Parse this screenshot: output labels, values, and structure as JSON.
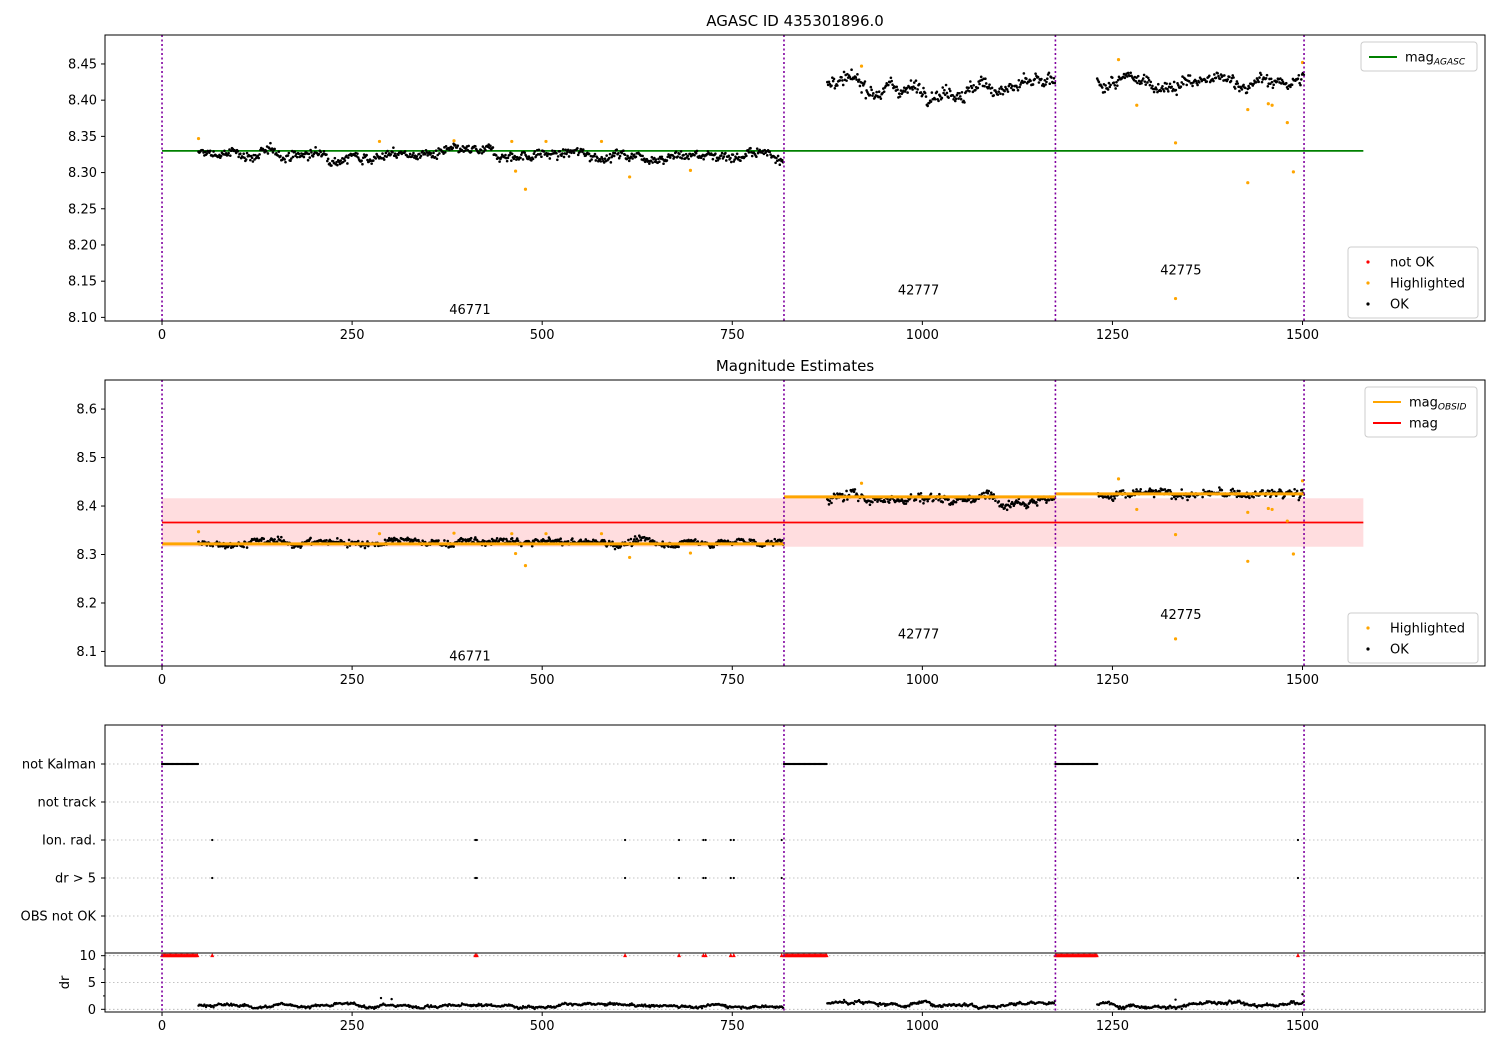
{
  "chart_data": [
    {
      "type": "scatter",
      "title": "AGASC ID 435301896.0",
      "xlim": [
        -75,
        1740
      ],
      "ylim": [
        8.095,
        8.49
      ],
      "xticks": [
        0,
        250,
        500,
        750,
        1000,
        1250,
        1500
      ],
      "yticks": [
        8.1,
        8.15,
        8.2,
        8.25,
        8.3,
        8.35,
        8.4,
        8.45
      ],
      "ytick_labels": [
        "8.10",
        "8.15",
        "8.20",
        "8.25",
        "8.30",
        "8.35",
        "8.40",
        "8.45"
      ],
      "grid": false,
      "obs_boundaries": [
        0,
        818,
        1175,
        1502
      ],
      "obs_labels": [
        {
          "text": "46771",
          "x": 405,
          "y": 8.11
        },
        {
          "text": "42777",
          "x": 995,
          "y": 8.137
        },
        {
          "text": "42775",
          "x": 1340,
          "y": 8.165
        }
      ],
      "mag_agasc": {
        "value": 8.33,
        "x_range": [
          0,
          1580
        ]
      },
      "ok_segments": [
        {
          "x_start": 48,
          "x_end": 818,
          "mean": 8.325,
          "spread": 0.007
        },
        {
          "x_start": 875,
          "x_end": 1175,
          "mean": 8.418,
          "spread": 0.01
        },
        {
          "x_start": 1230,
          "x_end": 1502,
          "mean": 8.424,
          "spread": 0.009
        }
      ],
      "highlighted": [
        [
          48,
          8.347
        ],
        [
          286,
          8.343
        ],
        [
          384,
          8.344
        ],
        [
          460,
          8.343
        ],
        [
          465,
          8.302
        ],
        [
          478,
          8.277
        ],
        [
          505,
          8.343
        ],
        [
          578,
          8.343
        ],
        [
          615,
          8.294
        ],
        [
          695,
          8.303
        ],
        [
          920,
          8.447
        ],
        [
          1258,
          8.456
        ],
        [
          1282,
          8.393
        ],
        [
          1333,
          8.341
        ],
        [
          1333,
          8.126
        ],
        [
          1428,
          8.387
        ],
        [
          1428,
          8.286
        ],
        [
          1455,
          8.395
        ],
        [
          1460,
          8.393
        ],
        [
          1480,
          8.369
        ],
        [
          1488,
          8.301
        ],
        [
          1500,
          8.452
        ]
      ],
      "legend_top": [
        {
          "label": "mag",
          "sub": "AGASC",
          "color": "#008000"
        }
      ],
      "legend_bottom": [
        {
          "label": "not OK",
          "color": "#ff0000"
        },
        {
          "label": "Highlighted",
          "color": "#ffa500"
        },
        {
          "label": "OK",
          "color": "#000000"
        }
      ]
    },
    {
      "type": "scatter",
      "title": "Magnitude Estimates",
      "xlim": [
        -75,
        1740
      ],
      "ylim": [
        8.07,
        8.66
      ],
      "xticks": [
        0,
        250,
        500,
        750,
        1000,
        1250,
        1500
      ],
      "yticks": [
        8.1,
        8.2,
        8.3,
        8.4,
        8.5,
        8.6
      ],
      "ytick_labels": [
        "8.1",
        "8.2",
        "8.3",
        "8.4",
        "8.5",
        "8.6"
      ],
      "grid": false,
      "obs_boundaries": [
        0,
        818,
        1175,
        1502
      ],
      "obs_labels": [
        {
          "text": "46771",
          "x": 405,
          "y": 8.09
        },
        {
          "text": "42777",
          "x": 995,
          "y": 8.135
        },
        {
          "text": "42775",
          "x": 1340,
          "y": 8.175
        }
      ],
      "mag": {
        "value": 8.366,
        "x_range": [
          0,
          1580
        ]
      },
      "mag_band": [
        8.316,
        8.416
      ],
      "mag_obsid": [
        {
          "x_range": [
            0,
            818
          ],
          "value": 8.322
        },
        {
          "x_range": [
            818,
            1175
          ],
          "value": 8.419
        },
        {
          "x_range": [
            1175,
            1502
          ],
          "value": 8.425
        }
      ],
      "highlighted": [
        [
          48,
          8.347
        ],
        [
          286,
          8.343
        ],
        [
          384,
          8.344
        ],
        [
          460,
          8.343
        ],
        [
          465,
          8.302
        ],
        [
          478,
          8.277
        ],
        [
          505,
          8.343
        ],
        [
          578,
          8.343
        ],
        [
          615,
          8.294
        ],
        [
          695,
          8.303
        ],
        [
          920,
          8.447
        ],
        [
          1258,
          8.456
        ],
        [
          1282,
          8.393
        ],
        [
          1333,
          8.341
        ],
        [
          1333,
          8.126
        ],
        [
          1428,
          8.387
        ],
        [
          1428,
          8.286
        ],
        [
          1455,
          8.395
        ],
        [
          1460,
          8.393
        ],
        [
          1480,
          8.369
        ],
        [
          1488,
          8.301
        ],
        [
          1500,
          8.452
        ]
      ],
      "legend_top": [
        {
          "label": "mag",
          "sub": "OBSID",
          "color": "#ffa500"
        },
        {
          "label": "mag",
          "sub": "",
          "color": "#ff0000"
        }
      ],
      "legend_bottom": [
        {
          "label": "Highlighted",
          "color": "#ffa500"
        },
        {
          "label": "OK",
          "color": "#000000"
        }
      ]
    },
    {
      "type": "scatter",
      "title": "",
      "xlim": [
        -75,
        1740
      ],
      "xticks": [
        0,
        250,
        500,
        750,
        1000,
        1250,
        1500
      ],
      "flag_rows": [
        "not Kalman",
        "not track",
        "Ion. rad.",
        "dr > 5",
        "OBS not OK"
      ],
      "obs_boundaries": [
        0,
        818,
        1175,
        1502
      ],
      "not_kalman_ranges": [
        [
          0,
          48
        ],
        [
          818,
          875
        ],
        [
          1175,
          1230
        ]
      ],
      "ion_rad_x": [
        66,
        412,
        414,
        609,
        680,
        712,
        715,
        748,
        752,
        815,
        1494
      ],
      "dr_gt5_x": [
        66,
        412,
        414,
        609,
        680,
        712,
        715,
        748,
        752,
        815,
        1494
      ],
      "dr_subplot": {
        "ylabel": "dr",
        "yticks": [
          0,
          5,
          10
        ],
        "ytick_labels": [
          "0",
          "5",
          "10"
        ],
        "ylim": [
          -0.5,
          10.5
        ],
        "dr_segments": [
          {
            "x_start": 48,
            "x_end": 818,
            "mean": 0.7,
            "spread": 0.4
          },
          {
            "x_start": 875,
            "x_end": 1175,
            "mean": 1.1,
            "spread": 0.5
          },
          {
            "x_start": 1230,
            "x_end": 1502,
            "mean": 0.9,
            "spread": 0.5
          }
        ],
        "dr_highlight": [
          [
            288,
            2.1
          ],
          [
            302,
            1.9
          ],
          [
            1333,
            1.8
          ],
          [
            1500,
            2.8
          ]
        ]
      }
    }
  ],
  "colors": {
    "ok": "#000000",
    "highlighted": "#ffa500",
    "not_ok": "#ff0000",
    "mag_agasc": "#008000",
    "mag": "#ff0000",
    "mag_band": "#ffdddf",
    "mag_obsid": "#ffa500",
    "obs_boundary": "#8000a0",
    "grid": "#b0b0b0"
  }
}
